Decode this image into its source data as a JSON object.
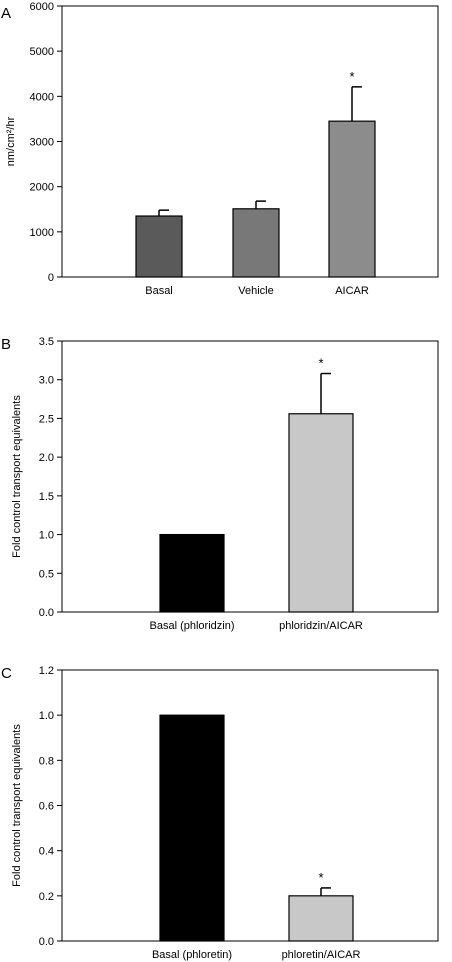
{
  "chart_data": [
    {
      "type": "bar",
      "panel_label": "A",
      "ylabel": "nm/cm²/hr",
      "ylim": [
        0,
        6000
      ],
      "yticks": [
        "0",
        "1000",
        "2000",
        "3000",
        "4000",
        "5000",
        "6000"
      ],
      "ytick_values": [
        0,
        1000,
        2000,
        3000,
        4000,
        5000,
        6000
      ],
      "categories": [
        "Basal",
        "Vehicle",
        "AICAR"
      ],
      "values": [
        1350,
        1510,
        3450
      ],
      "errors": [
        130,
        170,
        760
      ],
      "significance": [
        "",
        "",
        "*"
      ],
      "colors": [
        "#5a5a5a",
        "#787878",
        "#8c8c8c"
      ]
    },
    {
      "type": "bar",
      "panel_label": "B",
      "ylabel": "Fold control transport equivalents",
      "ylim": [
        0,
        3.5
      ],
      "yticks": [
        "0.0",
        "0.5",
        "1.0",
        "1.5",
        "2.0",
        "2.5",
        "3.0",
        "3.5"
      ],
      "ytick_values": [
        0,
        0.5,
        1.0,
        1.5,
        2.0,
        2.5,
        3.0,
        3.5
      ],
      "categories": [
        "Basal (phloridzin)",
        "phloridzin/AICAR"
      ],
      "values": [
        1.0,
        2.56
      ],
      "errors": [
        0,
        0.52
      ],
      "significance": [
        "",
        "*"
      ],
      "colors": [
        "#000000",
        "#c8c8c8"
      ]
    },
    {
      "type": "bar",
      "panel_label": "C",
      "ylabel": "Fold control transport equivalents",
      "ylim": [
        0,
        1.2
      ],
      "yticks": [
        "0.0",
        "0.2",
        "0.4",
        "0.6",
        "0.8",
        "1.0",
        "1.2"
      ],
      "ytick_values": [
        0,
        0.2,
        0.4,
        0.6,
        0.8,
        1.0,
        1.2
      ],
      "categories": [
        "Basal (phloretin)",
        "phloretin/AICAR"
      ],
      "values": [
        1.0,
        0.2
      ],
      "errors": [
        0,
        0.035
      ],
      "significance": [
        "",
        "*"
      ],
      "colors": [
        "#000000",
        "#c8c8c8"
      ]
    }
  ]
}
